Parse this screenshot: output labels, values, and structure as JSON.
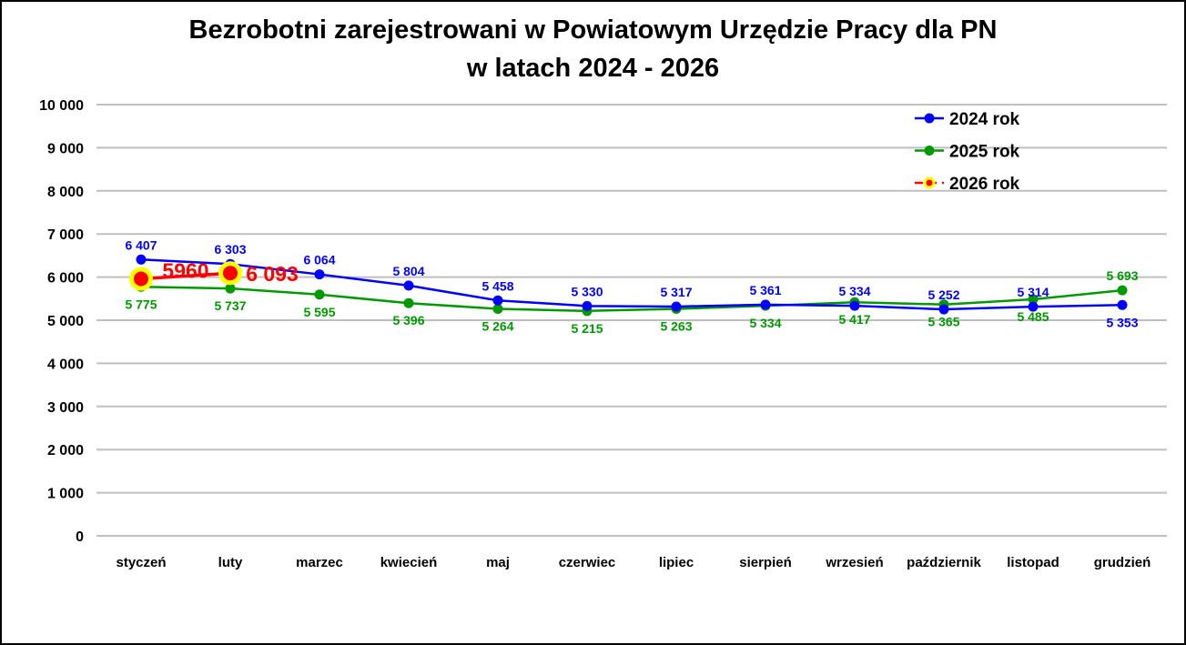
{
  "title": {
    "line1": "Bezrobotni zarejestrowani w Powiatowym Urzędzie Pracy dla PN",
    "line2": "w latach 2024 - 2026"
  },
  "colors": {
    "background": "#FFFFFF",
    "border": "#000000",
    "gridline": "#BFBFBF",
    "axis_text": "#000000",
    "legend_text": "#000000",
    "series_2024": "#0000FF",
    "series_2025": "#009900",
    "series_2026": "#FF0000",
    "series_2026_marker_ring": "#FFFF00"
  },
  "chart_data": {
    "type": "line",
    "title": "Bezrobotni zarejestrowani w Powiatowym Urzędzie Pracy dla PN w latach 2024 - 2026",
    "xlabel": "",
    "ylabel": "",
    "ylim": [
      0,
      10000
    ],
    "ytick_step": 1000,
    "ytick_labels": [
      "0",
      "1 000",
      "2 000",
      "3 000",
      "4 000",
      "5 000",
      "6 000",
      "7 000",
      "8 000",
      "9 000",
      "10 000"
    ],
    "grid": true,
    "legend_position": "top-right",
    "categories": [
      "styczeń",
      "luty",
      "marzec",
      "kwiecień",
      "maj",
      "czerwiec",
      "lipiec",
      "sierpień",
      "wrzesień",
      "październik",
      "listopad",
      "grudzień"
    ],
    "series": [
      {
        "name": "2024 rok",
        "color": "#0000FF",
        "line_style": "solid",
        "marker": "circle",
        "values": [
          6407,
          6303,
          6064,
          5804,
          5458,
          5330,
          5317,
          5361,
          5334,
          5252,
          5314,
          5353
        ],
        "labels": [
          "6 407",
          "6 303",
          "6 064",
          "5 804",
          "5 458",
          "5 330",
          "5 317",
          "5 361",
          "5 334",
          "5 252",
          "5 314",
          "5 353"
        ],
        "label_pos": [
          "above",
          "above",
          "above",
          "above",
          "above",
          "above",
          "above",
          "above",
          "above",
          "above",
          "above",
          "below"
        ],
        "emphasis": false
      },
      {
        "name": "2025 rok",
        "color": "#009900",
        "line_style": "solid",
        "marker": "circle",
        "values": [
          5775,
          5737,
          5595,
          5396,
          5264,
          5215,
          5263,
          5334,
          5417,
          5365,
          5485,
          5693
        ],
        "labels": [
          "5 775",
          "5 737",
          "5 595",
          "5 396",
          "5 264",
          "5 215",
          "5 263",
          "5 334",
          "5 417",
          "5 365",
          "5 485",
          "5 693"
        ],
        "label_pos": [
          "below",
          "below",
          "below",
          "below",
          "below",
          "below",
          "below",
          "below",
          "below",
          "below",
          "below",
          "above"
        ],
        "emphasis": false
      },
      {
        "name": "2026 rok",
        "color": "#FF0000",
        "line_style": "solid",
        "legend_line_style": "dashed",
        "marker": "circle-ringed",
        "marker_ring": "#FFFF00",
        "values": [
          5960,
          6093,
          null,
          null,
          null,
          null,
          null,
          null,
          null,
          null,
          null,
          null
        ],
        "labels": [
          "5960",
          "6 093"
        ],
        "label_pos": [
          "mid-above",
          "right"
        ],
        "emphasis": true
      }
    ]
  }
}
